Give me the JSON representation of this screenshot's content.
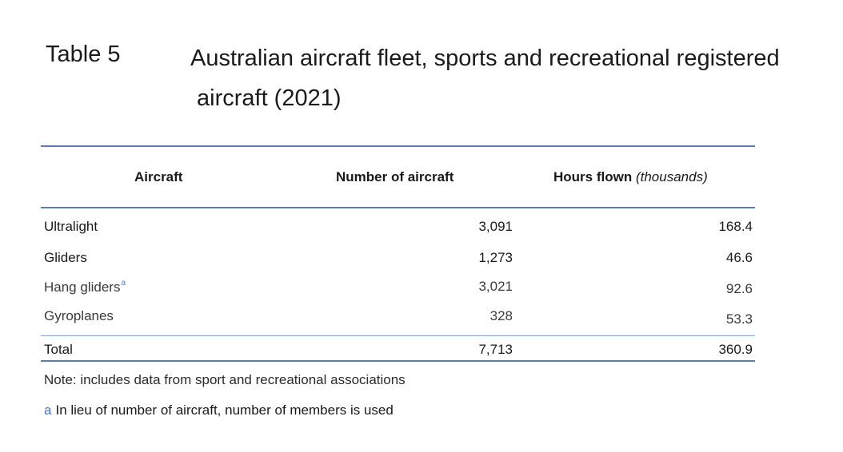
{
  "title": {
    "label": "Table 5",
    "text_line1": "Australian aircraft fleet, sports and recreational registered",
    "text_line2": "aircraft (2021)"
  },
  "table": {
    "headers": {
      "aircraft": "Aircraft",
      "number": "Number of aircraft",
      "hours": "Hours flown",
      "hours_unit": "(thousands)"
    },
    "rows": [
      {
        "name": "Ultralight",
        "number": "3,091",
        "hours": "168.4"
      },
      {
        "name": "Gliders",
        "number": "1,273",
        "hours": "46.6"
      },
      {
        "name": "Hang gliders",
        "footnote": "a",
        "number": "3,021",
        "hours": "92.6"
      },
      {
        "name": "Gyroplanes",
        "number": "328",
        "hours": "53.3"
      }
    ],
    "total": {
      "name": "Total",
      "number": "7,713",
      "hours": "360.9"
    }
  },
  "note": "Note: includes data from sport and recreational associations",
  "footnote": {
    "mark": "a",
    "text": "In lieu of number of aircraft, number of members is used"
  },
  "colors": {
    "rule": "#5b7fb5",
    "footnote_mark": "#4a74b4"
  }
}
